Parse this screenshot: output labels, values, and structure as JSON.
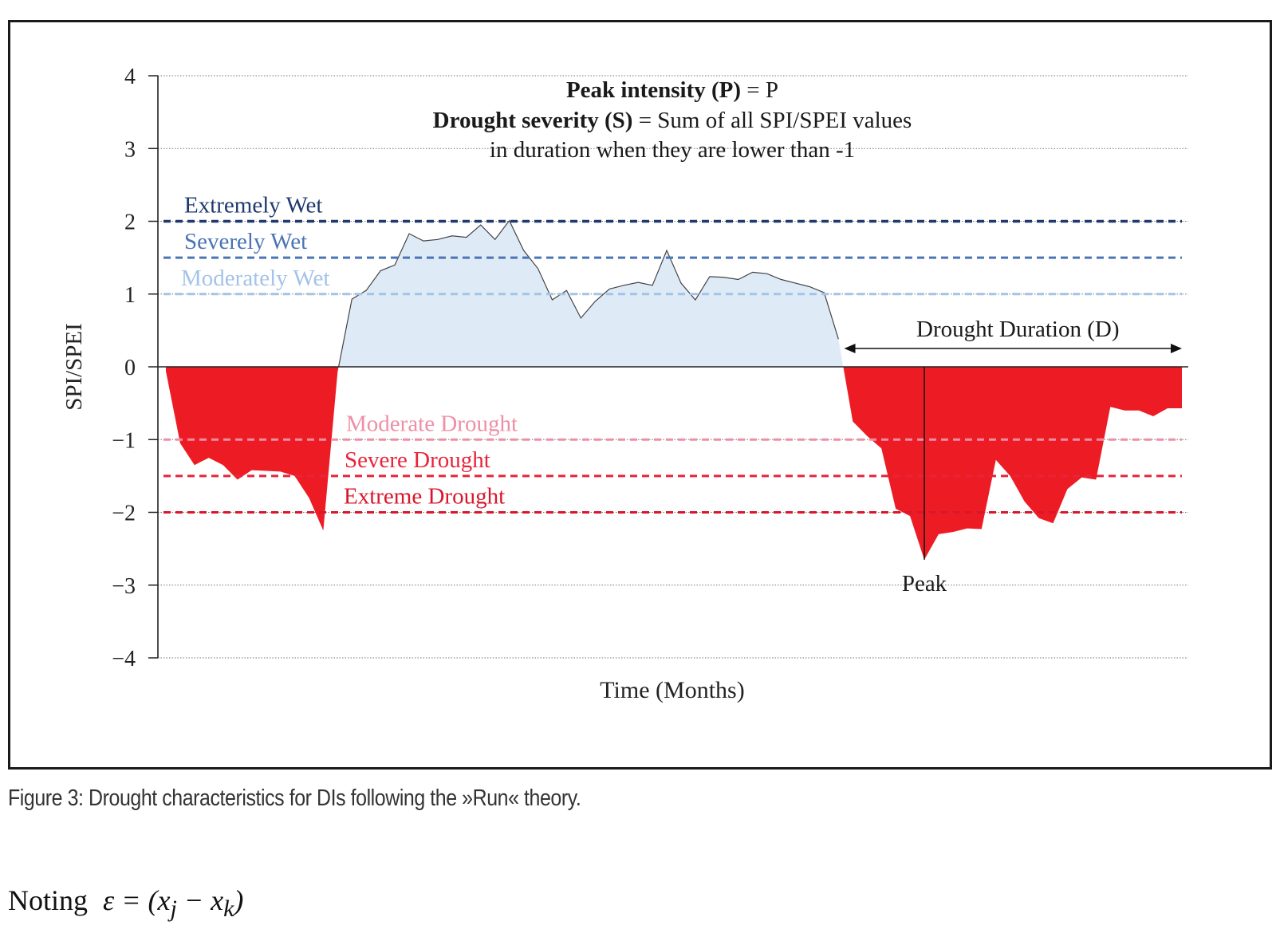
{
  "chart_data": {
    "type": "area",
    "title": "",
    "xlabel": "Time (Months)",
    "ylabel": "SPI/SPEI",
    "ylim": [
      -4,
      4
    ],
    "yticks": [
      4,
      3,
      2,
      1,
      0,
      -1,
      -2,
      -3,
      -4
    ],
    "ytick_labels": [
      "4",
      "3",
      "2",
      "1",
      "0",
      "−1",
      "−2",
      "−3",
      "−4"
    ],
    "x_range": [
      0,
      71
    ],
    "grid": "horizontal dotted",
    "series": [
      {
        "x": [
          0,
          1,
          2,
          3,
          4,
          5,
          6,
          7,
          8,
          9,
          10,
          11,
          12,
          13,
          14,
          15,
          16,
          17,
          18,
          19,
          20,
          21,
          22,
          23,
          24,
          25,
          26,
          27,
          28,
          29,
          30,
          31,
          32,
          33,
          34,
          35,
          36,
          37,
          38,
          39,
          40,
          41,
          42,
          43,
          44,
          45,
          46,
          47,
          48,
          49,
          50,
          51,
          52,
          53,
          54,
          55,
          56,
          57,
          58,
          59,
          60,
          61,
          62,
          63,
          64,
          65,
          66,
          67,
          68,
          69,
          70,
          71
        ],
        "values": [
          -0.06,
          -1.05,
          -1.35,
          -1.25,
          -1.35,
          -1.55,
          -1.42,
          -1.43,
          -1.44,
          -1.5,
          -1.8,
          -2.25,
          -0.07,
          0.93,
          1.05,
          1.32,
          1.4,
          1.83,
          1.73,
          1.75,
          1.8,
          1.78,
          1.95,
          1.75,
          2.01,
          1.6,
          1.35,
          0.92,
          1.05,
          0.67,
          0.9,
          1.07,
          1.12,
          1.16,
          1.12,
          1.6,
          1.15,
          0.92,
          1.24,
          1.23,
          1.2,
          1.3,
          1.28,
          1.2,
          1.15,
          1.1,
          1.02,
          0.38,
          -0.75,
          -0.95,
          -1.12,
          -1.95,
          -2.05,
          -2.65,
          -2.3,
          -2.27,
          -2.22,
          -2.23,
          -1.28,
          -1.5,
          -1.85,
          -2.08,
          -2.15,
          -1.68,
          -1.52,
          -1.55,
          -0.55,
          -0.6,
          -0.6,
          -0.68,
          -0.57,
          -0.57
        ]
      }
    ],
    "thresholds": [
      {
        "label": "Extremely Wet",
        "value": 2,
        "color": "#1f3a6b"
      },
      {
        "label": "Severely Wet",
        "value": 1.5,
        "color": "#4a74b4"
      },
      {
        "label": "Moderately Wet",
        "value": 1,
        "color": "#a3c3e8"
      },
      {
        "label": "Moderate Drought",
        "value": -1,
        "color": "#ee8fa6"
      },
      {
        "label": "Severe Drought",
        "value": -1.5,
        "color": "#e8243a"
      },
      {
        "label": "Extreme Drought",
        "value": -2,
        "color": "#d8172c"
      }
    ],
    "colors": {
      "positive_fill": "#deebf7",
      "negative_fill": "#ed1c24",
      "series_line": "#444444"
    },
    "annotations": {
      "peak_intensity_bold": "Peak intensity (P)",
      "peak_intensity_rest": " = P",
      "drought_severity_bold": "Drought severity (S)",
      "drought_severity_rest": " = Sum of all SPI/SPEI values",
      "drought_severity_line2": "in duration when they are lower than -1",
      "duration_label": "Drought Duration (D)",
      "duration_start_x": 47.4,
      "duration_end_x": 71,
      "peak_label": "Peak",
      "peak_x": 53,
      "peak_value": -2.65
    }
  },
  "caption": "Figure 3: Drought characteristics for DIs following the »Run« theory.",
  "noting": {
    "prefix": "Noting",
    "formula": "ε = (xj − xk)"
  }
}
